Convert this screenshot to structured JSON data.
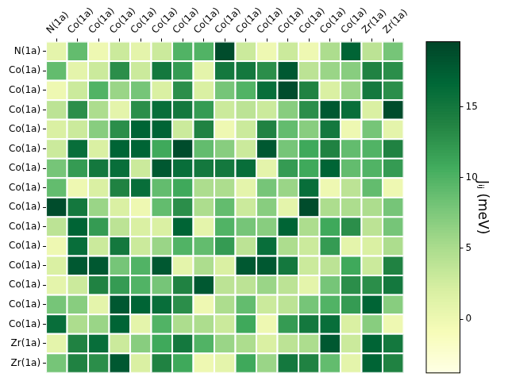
{
  "chart_data": {
    "type": "heatmap",
    "x": [
      "N(1a)",
      "Co(1a)",
      "Co(1a)",
      "Co(1a)",
      "Co(1a)",
      "Co(1a)",
      "Co(1a)",
      "Co(1a)",
      "Co(1a)",
      "Co(1a)",
      "Co(1a)",
      "Co(1a)",
      "Co(1a)",
      "Co(1a)",
      "Co(1a)",
      "Zr(1a)",
      "Zr(1a)"
    ],
    "y": [
      "N(1a)",
      "Co(1a)",
      "Co(1a)",
      "Co(1a)",
      "Co(1a)",
      "Co(1a)",
      "Co(1a)",
      "Co(1a)",
      "Co(1a)",
      "Co(1a)",
      "Co(1a)",
      "Co(1a)",
      "Co(1a)",
      "Co(1a)",
      "Co(1a)",
      "Zr(1a)",
      "Zr(1a)"
    ],
    "cells": [
      [
        1,
        9,
        0,
        3,
        1,
        3,
        10,
        10,
        19,
        3,
        0,
        3,
        0,
        5,
        17,
        4,
        8
      ],
      [
        9,
        1,
        3,
        13,
        3,
        15,
        12,
        1,
        15,
        15,
        13,
        18,
        4,
        6,
        7,
        14,
        13
      ],
      [
        0,
        3,
        10,
        6,
        8,
        2,
        13,
        2,
        8,
        10,
        16,
        19,
        14,
        2,
        6,
        15,
        13
      ],
      [
        4,
        13,
        5,
        1,
        13,
        16,
        15,
        12,
        3,
        4,
        3,
        7,
        13,
        18,
        16,
        2,
        19
      ],
      [
        2,
        3,
        7,
        13,
        17,
        17,
        3,
        14,
        0,
        3,
        14,
        9,
        7,
        15,
        0,
        8,
        1
      ],
      [
        3,
        16,
        2,
        17,
        17,
        11,
        19,
        9,
        7,
        3,
        18,
        8,
        11,
        14,
        9,
        10,
        14
      ],
      [
        8,
        12,
        15,
        16,
        3,
        18,
        16,
        15,
        15,
        16,
        1,
        12,
        11,
        17,
        9,
        10,
        12
      ],
      [
        9,
        0,
        2,
        14,
        16,
        9,
        11,
        5,
        5,
        1,
        8,
        6,
        16,
        0,
        4,
        9,
        0
      ],
      [
        19,
        15,
        6,
        2,
        0,
        9,
        13,
        5,
        9,
        3,
        7,
        1,
        19,
        5,
        5,
        5,
        8
      ],
      [
        4,
        17,
        12,
        4,
        2,
        2,
        17,
        1,
        10,
        8,
        7,
        17,
        5,
        11,
        13,
        4,
        8
      ],
      [
        0,
        16,
        3,
        15,
        3,
        6,
        10,
        9,
        12,
        4,
        16,
        5,
        3,
        12,
        1,
        2,
        5
      ],
      [
        2,
        18,
        18,
        8,
        10,
        18,
        1,
        5,
        2,
        18,
        18,
        15,
        3,
        4,
        11,
        3,
        14
      ],
      [
        1,
        3,
        14,
        12,
        10,
        8,
        14,
        18,
        4,
        4,
        6,
        4,
        1,
        8,
        13,
        13,
        15
      ],
      [
        8,
        7,
        1,
        18,
        17,
        16,
        13,
        0,
        5,
        9,
        3,
        4,
        8,
        10,
        12,
        17,
        7
      ],
      [
        16,
        5,
        6,
        17,
        1,
        10,
        5,
        5,
        3,
        11,
        0,
        12,
        15,
        16,
        2,
        7,
        0
      ],
      [
        1,
        14,
        16,
        3,
        7,
        11,
        15,
        10,
        6,
        5,
        2,
        4,
        5,
        18,
        3,
        17,
        15
      ],
      [
        8,
        14,
        13,
        18,
        2,
        14,
        11,
        0,
        1,
        11,
        6,
        15,
        14,
        9,
        1,
        17,
        14
      ]
    ],
    "color": "YlGn",
    "colorbar": {
      "label": "Jᵢⱼ (meV)",
      "lim": [
        -3.8,
        19.6
      ],
      "ticks": [
        0,
        5,
        10,
        15
      ]
    },
    "grid": false
  }
}
